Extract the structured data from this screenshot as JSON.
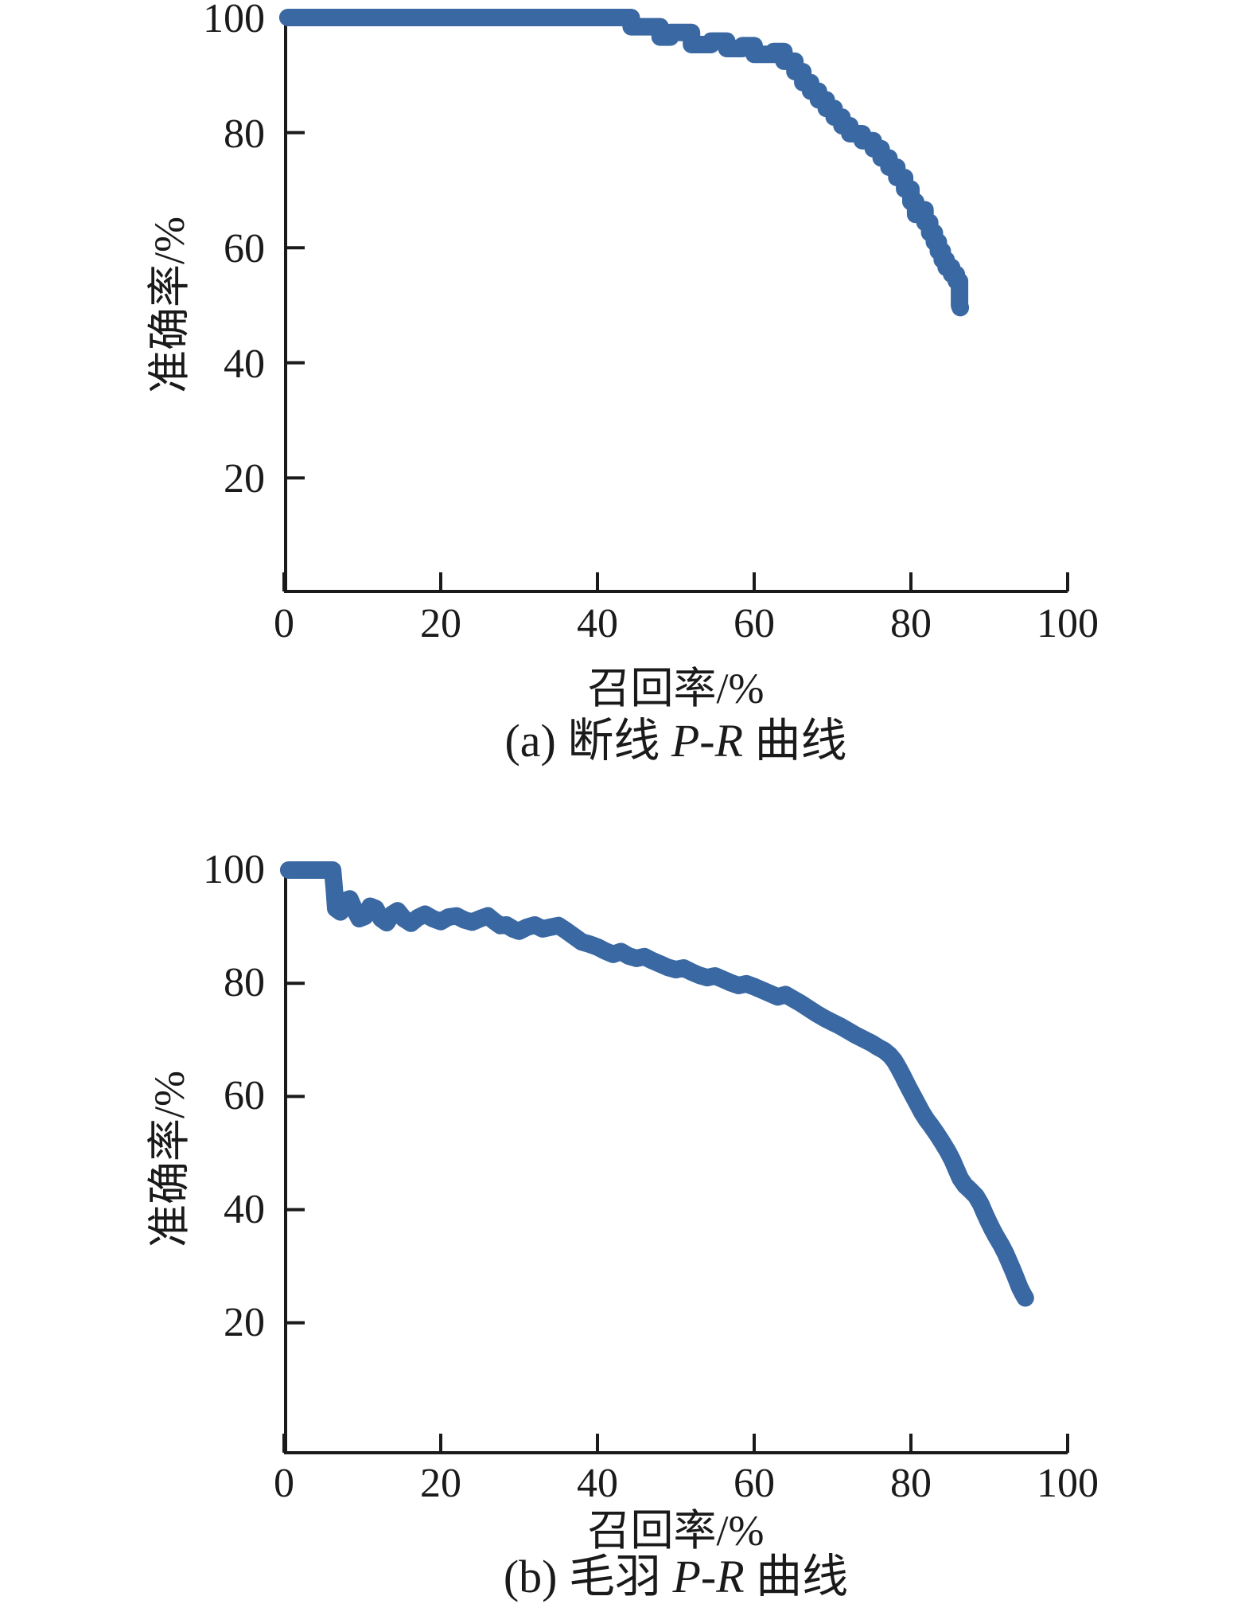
{
  "figure": {
    "background": "#ffffff",
    "curve_color": "#3a68a2",
    "axis_color": "#1a1a1a",
    "text_color": "#1a1a1a"
  },
  "chart_data": [
    {
      "type": "line",
      "title": "",
      "caption_prefix": "(a) 断线 ",
      "caption_italic": "P-R",
      "caption_suffix": " 曲线",
      "xlabel": "召回率/%",
      "ylabel": "准确率/%",
      "xlim": [
        0,
        100
      ],
      "ylim": [
        0,
        100
      ],
      "x_ticks": [
        0,
        20,
        40,
        60,
        80,
        100
      ],
      "y_ticks": [
        20,
        40,
        60,
        80,
        100
      ],
      "grid": false,
      "legend": false,
      "series": [
        {
          "name": "P-R",
          "x": [
            0.5,
            44.3,
            44.3,
            48,
            48,
            49.3,
            49.3,
            52,
            52,
            54.5,
            54.5,
            56.5,
            56.5,
            58.5,
            58.5,
            60,
            60,
            62.5,
            62.5,
            63.8,
            63.8,
            65.2,
            65.2,
            66.2,
            66.2,
            67.2,
            67.2,
            68.2,
            68.2,
            69.2,
            69.2,
            70.2,
            70.2,
            71.2,
            71.2,
            72.2,
            72.2,
            73.8,
            73.8,
            75.2,
            75.2,
            76.2,
            76.2,
            77.2,
            77.2,
            78.2,
            78.2,
            79.2,
            79.2,
            80,
            80,
            80.6,
            80.6,
            81.2,
            81.2,
            81.8,
            81.8,
            82.4,
            82.4,
            83,
            83,
            83.5,
            83.5,
            84,
            84,
            84.5,
            84.5,
            85.2,
            85.2,
            85.8,
            85.8,
            86.2,
            86.2,
            86.3
          ],
          "y": [
            100,
            100,
            98.4,
            98.4,
            96.6,
            96.6,
            97.4,
            97.4,
            95.3,
            95.3,
            95.9,
            95.9,
            94.6,
            94.6,
            95.1,
            95.1,
            93.6,
            93.6,
            94.1,
            94.1,
            92.4,
            92.4,
            90.6,
            90.6,
            88.7,
            88.7,
            87.2,
            87.2,
            85.7,
            85.7,
            84.2,
            84.2,
            82.7,
            82.7,
            81.2,
            81.2,
            79.8,
            79.8,
            78.6,
            78.6,
            77.2,
            77.2,
            75.6,
            75.6,
            74,
            74,
            72.2,
            72.2,
            70.2,
            70.2,
            68,
            68,
            65.8,
            65.8,
            66.6,
            66.6,
            64.4,
            64.4,
            62.6,
            62.6,
            61,
            61,
            59.4,
            59.4,
            57.9,
            57.9,
            56.6,
            56.6,
            55.4,
            55.4,
            54.2,
            54.2,
            50,
            49.6
          ]
        }
      ]
    },
    {
      "type": "line",
      "title": "",
      "caption_prefix": "(b) 毛羽 ",
      "caption_italic": "P-R",
      "caption_suffix": " 曲线",
      "xlabel": "召回率/%",
      "ylabel": "准确率/%",
      "xlim": [
        0,
        100
      ],
      "ylim": [
        0,
        100
      ],
      "x_ticks": [
        0,
        20,
        40,
        60,
        80,
        100
      ],
      "y_ticks": [
        20,
        40,
        60,
        80,
        100
      ],
      "grid": false,
      "legend": false,
      "series": [
        {
          "name": "P-R",
          "x": [
            0.6,
            6.2,
            6.4,
            6.6,
            7.2,
            7.8,
            8.4,
            9,
            9.6,
            10.3,
            11,
            11.7,
            12.4,
            13.1,
            13.8,
            14.5,
            15.3,
            16.2,
            17.1,
            18,
            19,
            20,
            21,
            22,
            23,
            24,
            25,
            26,
            26.8,
            27.6,
            28.4,
            29.2,
            30,
            31,
            32,
            33,
            34,
            35,
            36,
            37,
            38,
            39,
            40,
            41,
            42,
            43,
            44,
            45,
            46,
            47,
            48,
            49,
            50,
            51,
            52,
            53,
            54,
            55,
            56,
            57,
            58,
            59,
            60,
            61,
            62,
            63,
            64,
            65,
            66,
            67,
            68,
            69,
            70,
            71,
            72,
            73,
            74,
            75,
            75.8,
            76.6,
            77.3,
            77.9,
            78.4,
            78.9,
            79.4,
            79.9,
            80.4,
            80.9,
            81.4,
            82,
            82.6,
            83.3,
            84,
            84.7,
            85.3,
            85.8,
            86.3,
            86.9,
            87.6,
            88.3,
            88.9,
            89.4,
            89.9,
            90.4,
            90.9,
            91.5,
            92.1,
            92.6,
            93.1,
            93.5,
            93.9,
            94.3,
            94.6
          ],
          "y": [
            100,
            100,
            97,
            93.2,
            92.6,
            94.6,
            94.9,
            93,
            91.4,
            91.8,
            93.6,
            93.2,
            91.4,
            90.7,
            92.2,
            92.8,
            91.4,
            90.6,
            91.6,
            92.2,
            91.4,
            90.9,
            91.7,
            91.9,
            91.2,
            90.8,
            91.4,
            91.9,
            91,
            90.2,
            90.3,
            89.6,
            89.2,
            89.9,
            90.3,
            89.6,
            89.9,
            90.2,
            89.3,
            88.3,
            87.3,
            86.9,
            86.4,
            85.7,
            85.1,
            85.6,
            84.8,
            84.4,
            84.7,
            84,
            83.4,
            82.8,
            82.4,
            82.7,
            82,
            81.4,
            81,
            81.3,
            80.7,
            80.1,
            79.6,
            79.9,
            79.4,
            78.8,
            78.2,
            77.6,
            78,
            77.2,
            76.4,
            75.5,
            74.6,
            73.8,
            73.1,
            72.4,
            71.6,
            70.8,
            70.1,
            69.4,
            68.7,
            68.1,
            67.3,
            66.3,
            65.1,
            63.8,
            62.4,
            61.1,
            59.8,
            58.5,
            57.2,
            55.9,
            54.8,
            53.4,
            51.9,
            50.3,
            48.7,
            47.1,
            45.5,
            44.3,
            43.4,
            42.4,
            41,
            39.4,
            37.9,
            36.5,
            35.2,
            33.8,
            32.2,
            30.6,
            29,
            27.6,
            26.2,
            25.1,
            24.4
          ]
        }
      ]
    }
  ]
}
